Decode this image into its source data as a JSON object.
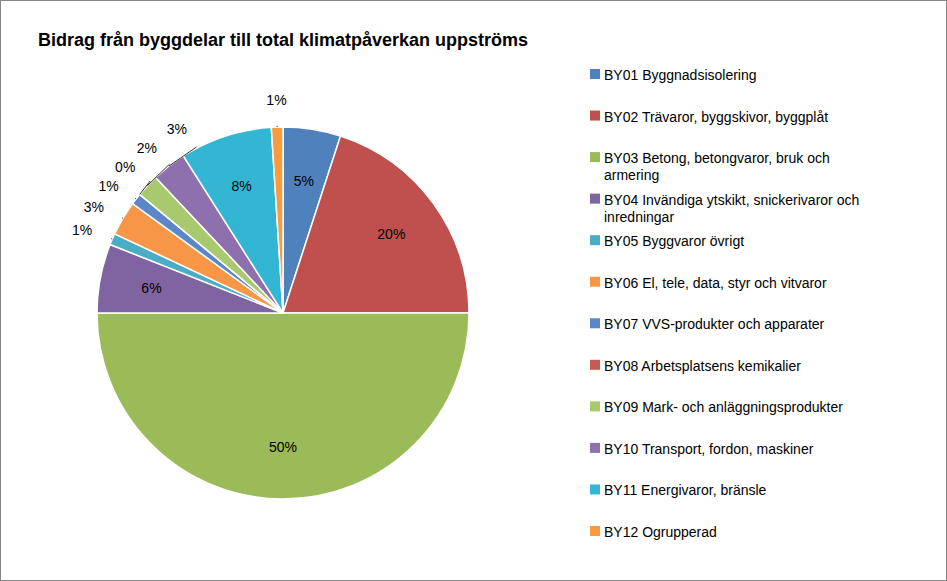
{
  "chart_data": {
    "type": "pie",
    "title": "Bidrag från byggdelar till total klimatpåverkan uppströms",
    "categories": [
      "BY01 Byggnadsisolering",
      "BY02 Trävaror, byggskivor, byggplåt",
      "BY03 Betong, betongvaror, bruk och armering",
      "BY04 Invändiga ytskikt, snickerivaror och inredningar",
      "BY05 Byggvaror övrigt",
      "BY06 El, tele, data, styr och vitvaror",
      "BY07 VVS-produkter och apparater",
      "BY08 Arbetsplatsens kemikalier",
      "BY09 Mark- och anläggningsprodukter",
      "BY10 Transport, fordon, maskiner",
      "BY11 Energivaror, bränsle",
      "BY12 Ogrupperad"
    ],
    "values": [
      5,
      20,
      50,
      6,
      1,
      3,
      1,
      0,
      2,
      3,
      8,
      1
    ],
    "value_labels": [
      "5%",
      "20%",
      "50%",
      "6%",
      "1%",
      "3%",
      "1%",
      "0%",
      "2%",
      "3%",
      "8%",
      "1%"
    ],
    "colors": [
      "#4f81bd",
      "#c0504d",
      "#9bbb59",
      "#8064a2",
      "#4bacc6",
      "#f79646",
      "#5b87c8",
      "#c55a57",
      "#a9c96f",
      "#8d70ad",
      "#33b6d3",
      "#f99a3c"
    ],
    "data_labels": true,
    "legend": "right"
  }
}
